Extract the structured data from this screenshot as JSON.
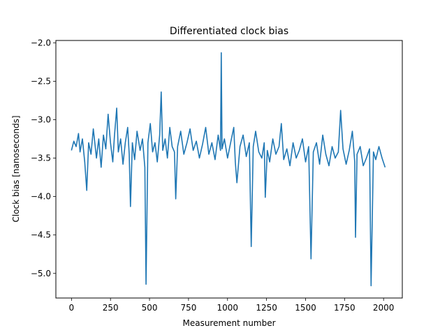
{
  "chart_data": {
    "type": "line",
    "title": "Differentiated clock bias",
    "xlabel": "Measurement number",
    "ylabel": "Clock bias [nanoseconds]",
    "xlim": [
      -100,
      2120
    ],
    "ylim": [
      -5.32,
      -1.97
    ],
    "xticks": [
      0,
      250,
      500,
      750,
      1000,
      1250,
      1500,
      1750,
      2000
    ],
    "xtick_labels": [
      "0",
      "250",
      "500",
      "750",
      "1000",
      "1250",
      "1500",
      "1750",
      "2000"
    ],
    "yticks": [
      -5.0,
      -4.5,
      -4.0,
      -3.5,
      -3.0,
      -2.5,
      -2.0
    ],
    "ytick_labels": [
      "−5.0",
      "−4.5",
      "−4.0",
      "−3.5",
      "−3.0",
      "−2.5",
      "−2.0"
    ],
    "grid": false,
    "legend": "none",
    "color": "#1f77b4",
    "series": [
      {
        "x": [
          0,
          15,
          30,
          45,
          55,
          70,
          85,
          98,
          110,
          125,
          140,
          160,
          175,
          190,
          205,
          220,
          235,
          250,
          265,
          275,
          290,
          300,
          315,
          330,
          345,
          360,
          370,
          378,
          390,
          405,
          420,
          440,
          455,
          470,
          478,
          490,
          505,
          520,
          535,
          550,
          565,
          575,
          585,
          600,
          615,
          630,
          645,
          660,
          668,
          680,
          700,
          720,
          740,
          760,
          780,
          800,
          820,
          840,
          860,
          880,
          900,
          920,
          940,
          955,
          960,
          965,
          980,
          1000,
          1020,
          1040,
          1050,
          1060,
          1080,
          1100,
          1120,
          1140,
          1152,
          1165,
          1180,
          1200,
          1220,
          1235,
          1242,
          1255,
          1270,
          1290,
          1310,
          1330,
          1345,
          1360,
          1380,
          1400,
          1420,
          1440,
          1460,
          1480,
          1500,
          1520,
          1535,
          1550,
          1570,
          1590,
          1610,
          1630,
          1650,
          1670,
          1690,
          1710,
          1725,
          1740,
          1760,
          1780,
          1800,
          1815,
          1820,
          1830,
          1850,
          1870,
          1890,
          1910,
          1920,
          1935,
          1950,
          1970,
          1990,
          2010
        ],
        "y": [
          -3.4,
          -3.28,
          -3.35,
          -3.18,
          -3.42,
          -3.25,
          -3.55,
          -3.92,
          -3.3,
          -3.45,
          -3.12,
          -3.5,
          -3.25,
          -3.62,
          -3.2,
          -3.38,
          -2.93,
          -3.3,
          -3.55,
          -3.22,
          -2.85,
          -3.42,
          -3.25,
          -3.58,
          -3.3,
          -3.1,
          -3.45,
          -4.13,
          -3.3,
          -3.52,
          -3.15,
          -3.4,
          -3.25,
          -3.62,
          -5.14,
          -3.3,
          -3.05,
          -3.42,
          -3.3,
          -3.55,
          -3.2,
          -2.64,
          -3.4,
          -3.25,
          -3.5,
          -3.1,
          -3.35,
          -3.42,
          -4.03,
          -3.35,
          -3.15,
          -3.45,
          -3.3,
          -3.12,
          -3.4,
          -3.28,
          -3.5,
          -3.32,
          -3.1,
          -3.45,
          -3.3,
          -3.52,
          -3.2,
          -3.4,
          -2.13,
          -3.38,
          -3.25,
          -3.5,
          -3.3,
          -3.1,
          -3.55,
          -3.82,
          -3.35,
          -3.2,
          -3.48,
          -3.3,
          -4.65,
          -3.35,
          -3.15,
          -3.42,
          -3.5,
          -3.3,
          -4.01,
          -3.4,
          -3.55,
          -3.25,
          -3.45,
          -3.35,
          -3.05,
          -3.52,
          -3.38,
          -3.6,
          -3.3,
          -3.5,
          -3.4,
          -3.25,
          -3.55,
          -3.35,
          -4.81,
          -3.42,
          -3.3,
          -3.58,
          -3.2,
          -3.45,
          -3.6,
          -3.35,
          -3.5,
          -3.42,
          -2.88,
          -3.38,
          -3.58,
          -3.4,
          -3.15,
          -3.55,
          -4.53,
          -3.45,
          -3.35,
          -3.6,
          -3.5,
          -3.38,
          -5.16,
          -3.42,
          -3.52,
          -3.35,
          -3.5,
          -3.62
        ]
      }
    ]
  }
}
